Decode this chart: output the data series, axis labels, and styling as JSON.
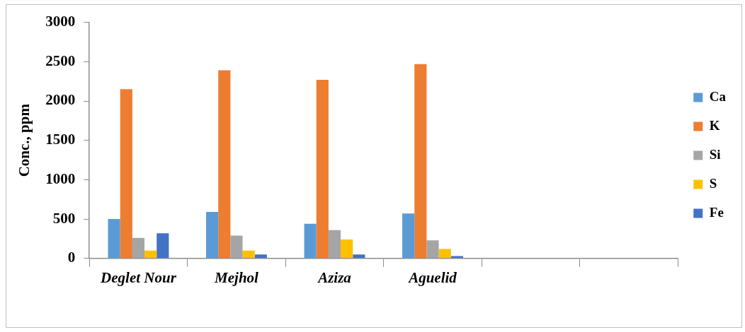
{
  "chart_data": {
    "type": "bar",
    "ylabel": "Conc., ppm",
    "categories": [
      "Deglet Nour",
      "Mejhol",
      "Aziza",
      "Aguelid",
      null,
      null
    ],
    "series": [
      {
        "name": "Ca",
        "color": "#5b9bd5",
        "values": [
          500,
          590,
          440,
          570,
          null,
          null
        ]
      },
      {
        "name": "K",
        "color": "#ed7d31",
        "values": [
          2150,
          2390,
          2270,
          2470,
          null,
          null
        ]
      },
      {
        "name": "Si",
        "color": "#a5a5a5",
        "values": [
          260,
          290,
          360,
          230,
          null,
          null
        ]
      },
      {
        "name": "S",
        "color": "#ffc000",
        "values": [
          100,
          100,
          240,
          120,
          null,
          null
        ]
      },
      {
        "name": "Fe",
        "color": "#4472c4",
        "values": [
          320,
          50,
          50,
          30,
          null,
          null
        ]
      }
    ],
    "ylim": [
      0,
      3000
    ],
    "yticks": [
      0,
      500,
      1000,
      1500,
      2000,
      2500,
      3000
    ],
    "grid": false,
    "legend": "right"
  }
}
